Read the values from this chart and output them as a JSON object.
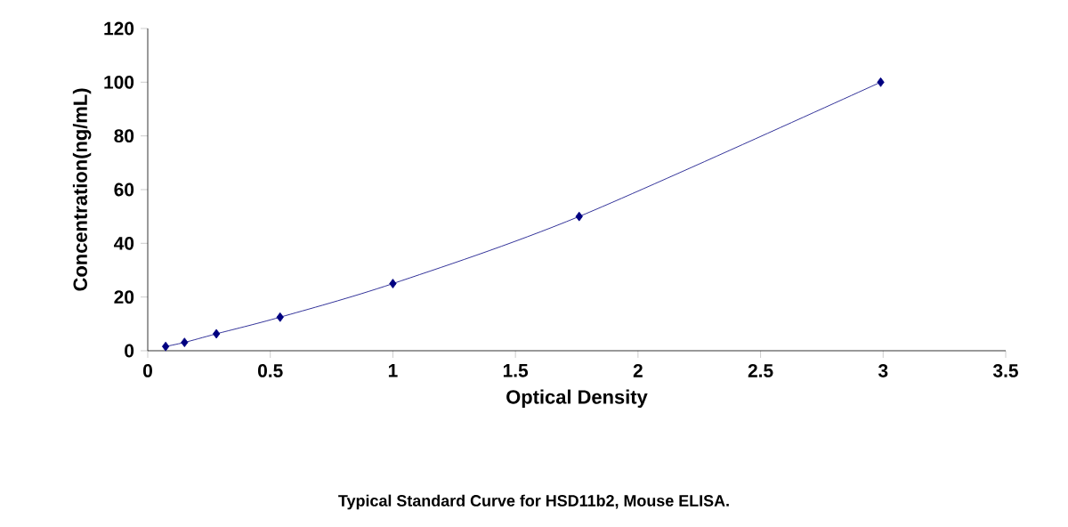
{
  "chart_data": {
    "type": "line",
    "xlabel": "Optical Density",
    "ylabel": "Concentration(ng/mL)",
    "annotations": [
      "Typical Standard Curve for HSD11b2, Mouse ELISA."
    ],
    "series": [
      {
        "color": "#000080",
        "x": [
          0.073,
          0.15,
          0.28,
          0.54,
          1.0,
          1.76,
          2.99
        ],
        "values": [
          1.6,
          3.1,
          6.3,
          12.5,
          25,
          50,
          100
        ]
      }
    ],
    "marker": "diamond",
    "line_style": "solid",
    "grid": false,
    "xlim": [
      0,
      3.5
    ],
    "xticks": [
      0,
      0.5,
      1,
      1.5,
      2,
      2.5,
      3,
      3.5
    ],
    "ylim": [
      0,
      120
    ],
    "yticks": [
      0,
      20,
      40,
      60,
      80,
      100,
      120
    ]
  }
}
